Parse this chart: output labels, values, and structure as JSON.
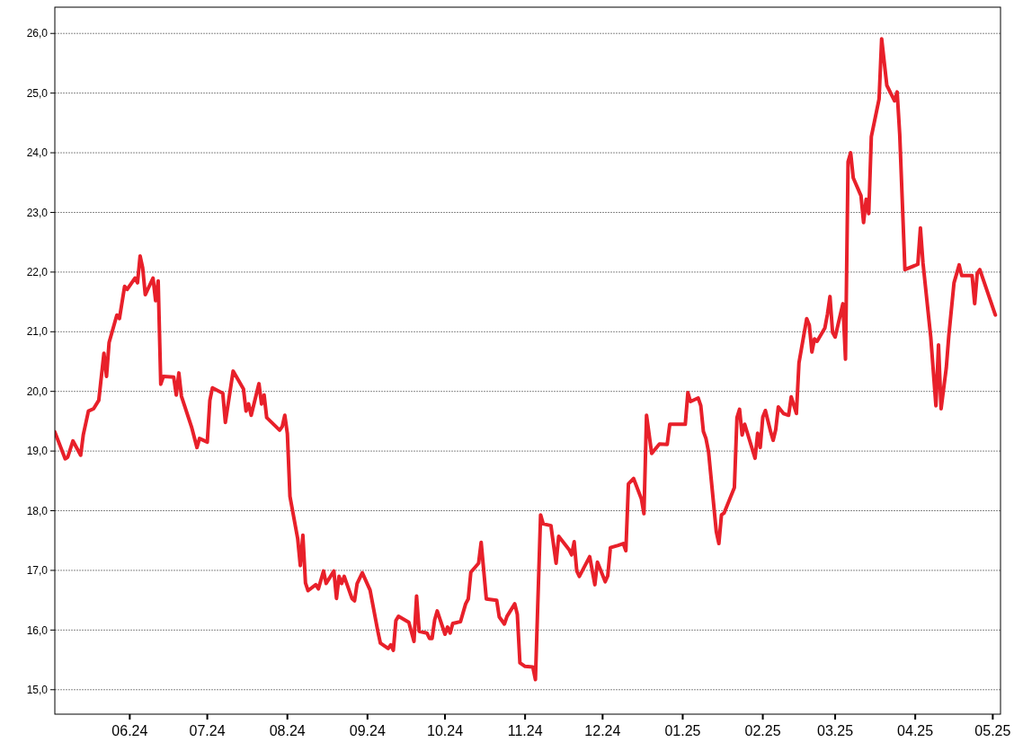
{
  "chart_data": {
    "type": "line",
    "xlim": [
      "2024-05-03",
      "2025-05-04"
    ],
    "ylim": [
      14.59,
      26.44
    ],
    "xticks": [
      {
        "value": "2024-06-01",
        "label": "06.24"
      },
      {
        "value": "2024-07-01",
        "label": "07.24"
      },
      {
        "value": "2024-08-01",
        "label": "08.24"
      },
      {
        "value": "2024-09-01",
        "label": "09.24"
      },
      {
        "value": "2024-10-01",
        "label": "10.24"
      },
      {
        "value": "2024-11-01",
        "label": "11.24"
      },
      {
        "value": "2024-12-01",
        "label": "12.24"
      },
      {
        "value": "2025-01-01",
        "label": "01.25"
      },
      {
        "value": "2025-02-01",
        "label": "02.25"
      },
      {
        "value": "2025-03-01",
        "label": "03.25"
      },
      {
        "value": "2025-04-01",
        "label": "04.25"
      },
      {
        "value": "2025-05-01",
        "label": "05.25"
      }
    ],
    "yticks": [
      {
        "value": 15,
        "label": "15,0"
      },
      {
        "value": 16,
        "label": "16,0"
      },
      {
        "value": 17,
        "label": "17,0"
      },
      {
        "value": 18,
        "label": "18,0"
      },
      {
        "value": 19,
        "label": "19,0"
      },
      {
        "value": 20,
        "label": "20,0"
      },
      {
        "value": 21,
        "label": "21,0"
      },
      {
        "value": 22,
        "label": "22,0"
      },
      {
        "value": 23,
        "label": "23,0"
      },
      {
        "value": 24,
        "label": "24,0"
      },
      {
        "value": 25,
        "label": "25,0"
      },
      {
        "value": 26,
        "label": "26,0"
      }
    ],
    "grid": "y",
    "line_style": "solid",
    "series": [
      {
        "color": "#e8202a",
        "x": [
          "2024-05-03",
          "2024-05-07",
          "2024-05-08",
          "2024-05-10",
          "2024-05-13",
          "2024-05-14",
          "2024-05-16",
          "2024-05-18",
          "2024-05-20",
          "2024-05-22",
          "2024-05-23",
          "2024-05-24",
          "2024-05-27",
          "2024-05-28",
          "2024-05-30",
          "2024-05-31",
          "2024-06-03",
          "2024-06-04",
          "2024-06-05",
          "2024-06-06",
          "2024-06-07",
          "2024-06-10",
          "2024-06-11",
          "2024-06-12",
          "2024-06-13",
          "2024-06-14",
          "2024-06-18",
          "2024-06-19",
          "2024-06-20",
          "2024-06-21",
          "2024-06-25",
          "2024-06-27",
          "2024-06-28",
          "2024-07-01",
          "2024-07-02",
          "2024-07-03",
          "2024-07-07",
          "2024-07-08",
          "2024-07-11",
          "2024-07-15",
          "2024-07-16",
          "2024-07-17",
          "2024-07-18",
          "2024-07-21",
          "2024-07-22",
          "2024-07-23",
          "2024-07-24",
          "2024-07-29",
          "2024-07-30",
          "2024-07-31",
          "2024-08-01",
          "2024-08-02",
          "2024-08-05",
          "2024-08-06",
          "2024-08-07",
          "2024-08-08",
          "2024-08-09",
          "2024-08-12",
          "2024-08-13",
          "2024-08-15",
          "2024-08-16",
          "2024-08-19",
          "2024-08-20",
          "2024-08-21",
          "2024-08-22",
          "2024-08-23",
          "2024-08-26",
          "2024-08-27",
          "2024-08-28",
          "2024-08-30",
          "2024-09-02",
          "2024-09-05",
          "2024-09-06",
          "2024-09-09",
          "2024-09-10",
          "2024-09-11",
          "2024-09-12",
          "2024-09-13",
          "2024-09-17",
          "2024-09-19",
          "2024-09-20",
          "2024-09-21",
          "2024-09-24",
          "2024-09-25",
          "2024-09-26",
          "2024-09-27",
          "2024-09-28",
          "2024-10-01",
          "2024-10-02",
          "2024-10-03",
          "2024-10-04",
          "2024-10-07",
          "2024-10-09",
          "2024-10-10",
          "2024-10-11",
          "2024-10-14",
          "2024-10-15",
          "2024-10-17",
          "2024-10-21",
          "2024-10-22",
          "2024-10-24",
          "2024-10-25",
          "2024-10-28",
          "2024-10-29",
          "2024-10-30",
          "2024-11-01",
          "2024-11-04",
          "2024-11-05",
          "2024-11-07",
          "2024-11-08",
          "2024-11-11",
          "2024-11-13",
          "2024-11-14",
          "2024-11-18",
          "2024-11-19",
          "2024-11-20",
          "2024-11-21",
          "2024-11-22",
          "2024-11-26",
          "2024-11-28",
          "2024-11-29",
          "2024-12-02",
          "2024-12-03",
          "2024-12-04",
          "2024-12-07",
          "2024-12-09",
          "2024-12-10",
          "2024-12-11",
          "2024-12-13",
          "2024-12-16",
          "2024-12-17",
          "2024-12-18",
          "2024-12-20",
          "2024-12-23",
          "2024-12-26",
          "2024-12-27",
          "2025-01-02",
          "2025-01-03",
          "2025-01-04",
          "2025-01-07",
          "2025-01-08",
          "2025-01-09",
          "2025-01-10",
          "2025-01-11",
          "2025-01-14",
          "2025-01-15",
          "2025-01-16",
          "2025-01-17",
          "2025-01-21",
          "2025-01-22",
          "2025-01-23",
          "2025-01-24",
          "2025-01-25",
          "2025-01-29",
          "2025-01-30",
          "2025-01-31",
          "2025-02-01",
          "2025-02-02",
          "2025-02-04",
          "2025-02-05",
          "2025-02-06",
          "2025-02-07",
          "2025-02-09",
          "2025-02-11",
          "2025-02-12",
          "2025-02-14",
          "2025-02-15",
          "2025-02-18",
          "2025-02-19",
          "2025-02-20",
          "2025-02-21",
          "2025-02-22",
          "2025-02-25",
          "2025-02-26",
          "2025-02-27",
          "2025-02-28",
          "2025-03-01",
          "2025-03-04",
          "2025-03-05",
          "2025-03-06",
          "2025-03-07",
          "2025-03-08",
          "2025-03-11",
          "2025-03-12",
          "2025-03-13",
          "2025-03-14",
          "2025-03-15",
          "2025-03-18",
          "2025-03-19",
          "2025-03-21",
          "2025-03-24",
          "2025-03-25",
          "2025-03-26",
          "2025-03-28",
          "2025-04-02",
          "2025-04-03",
          "2025-04-04",
          "2025-04-07",
          "2025-04-09",
          "2025-04-10",
          "2025-04-11",
          "2025-04-13",
          "2025-04-14",
          "2025-04-16",
          "2025-04-18",
          "2025-04-19",
          "2025-04-23",
          "2025-04-24",
          "2025-04-25",
          "2025-04-26",
          "2025-05-02"
        ],
        "values": [
          19.32,
          18.87,
          18.9,
          19.17,
          18.93,
          19.27,
          19.67,
          19.71,
          19.85,
          20.64,
          20.25,
          20.82,
          21.28,
          21.22,
          21.76,
          21.71,
          21.9,
          21.82,
          22.27,
          22.07,
          21.62,
          21.9,
          21.52,
          21.85,
          20.12,
          20.25,
          20.24,
          19.94,
          20.31,
          19.92,
          19.39,
          19.06,
          19.21,
          19.15,
          19.85,
          20.06,
          19.97,
          19.48,
          20.34,
          20.04,
          19.67,
          19.79,
          19.6,
          20.13,
          19.79,
          19.94,
          19.56,
          19.35,
          19.41,
          19.6,
          19.29,
          18.24,
          17.53,
          17.08,
          17.59,
          16.79,
          16.66,
          16.76,
          16.69,
          16.99,
          16.78,
          16.99,
          16.53,
          16.9,
          16.78,
          16.9,
          16.53,
          16.49,
          16.78,
          16.96,
          16.67,
          15.98,
          15.78,
          15.69,
          15.75,
          15.66,
          16.16,
          16.23,
          16.13,
          15.81,
          16.57,
          15.98,
          15.95,
          15.86,
          15.86,
          16.17,
          16.32,
          15.93,
          16.05,
          15.95,
          16.11,
          16.14,
          16.44,
          16.52,
          16.97,
          17.12,
          17.47,
          16.52,
          16.5,
          16.22,
          16.1,
          16.23,
          16.44,
          16.26,
          15.45,
          15.39,
          15.38,
          15.17,
          17.93,
          17.78,
          17.75,
          17.12,
          17.57,
          17.35,
          17.26,
          17.48,
          16.99,
          16.9,
          17.23,
          16.76,
          17.14,
          16.81,
          16.91,
          17.38,
          17.42,
          17.45,
          17.33,
          18.45,
          18.54,
          18.2,
          17.95,
          19.6,
          18.96,
          19.12,
          19.11,
          19.45,
          19.45,
          19.98,
          19.83,
          19.89,
          19.76,
          19.33,
          19.21,
          18.99,
          17.65,
          17.45,
          17.93,
          17.96,
          18.39,
          19.56,
          19.7,
          19.27,
          19.45,
          18.88,
          19.3,
          19.06,
          19.57,
          19.68,
          19.33,
          19.18,
          19.36,
          19.74,
          19.63,
          19.6,
          19.91,
          19.63,
          20.48,
          21.22,
          21.11,
          20.66,
          20.88,
          20.84,
          21.06,
          21.29,
          21.59,
          20.99,
          20.91,
          21.47,
          20.54,
          23.85,
          24.0,
          23.58,
          23.28,
          22.83,
          23.22,
          22.98,
          24.27,
          24.9,
          25.91,
          25.13,
          24.87,
          25.02,
          24.3,
          22.04,
          22.13,
          22.74,
          22.15,
          20.91,
          19.76,
          20.78,
          19.71,
          20.39,
          20.94,
          21.82,
          22.12,
          21.94,
          21.94,
          21.47,
          21.98,
          22.04,
          21.28
        ]
      }
    ]
  }
}
